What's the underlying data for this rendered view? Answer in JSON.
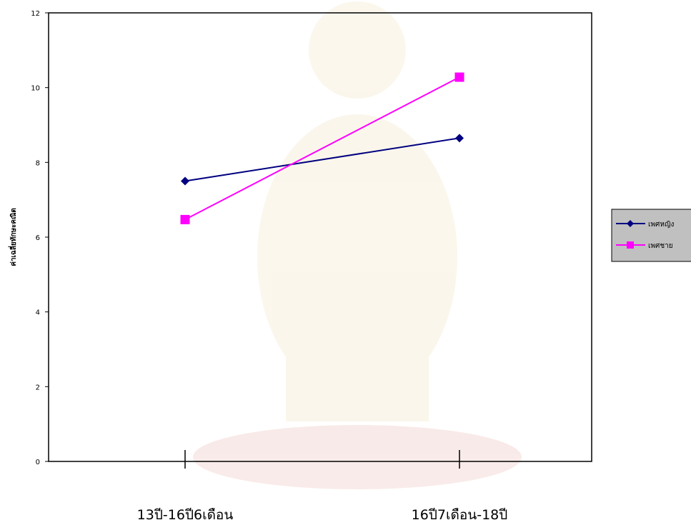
{
  "chart_data": {
    "type": "line",
    "categories": [
      "13ปี-16ปี6เดือน",
      "16ปี7เดือน-18ปี"
    ],
    "series": [
      {
        "name": "เพศหญิง",
        "values": [
          7.5,
          8.65
        ],
        "color": "#000080",
        "marker": "diamond"
      },
      {
        "name": "เพศชาย",
        "values": [
          6.47,
          10.28
        ],
        "color": "#ff00ff",
        "marker": "square"
      }
    ],
    "title": "",
    "xlabel": "",
    "ylabel": "ค่าเฉลี่ยทักษะคณิต",
    "ylim": [
      0,
      12
    ],
    "yticks": [
      0,
      2,
      4,
      6,
      8,
      10,
      12
    ],
    "grid": false,
    "legend": "right"
  },
  "colors": {
    "background": "#ffffff",
    "legend_background": "#c0c0c0",
    "axis": "#000000"
  }
}
